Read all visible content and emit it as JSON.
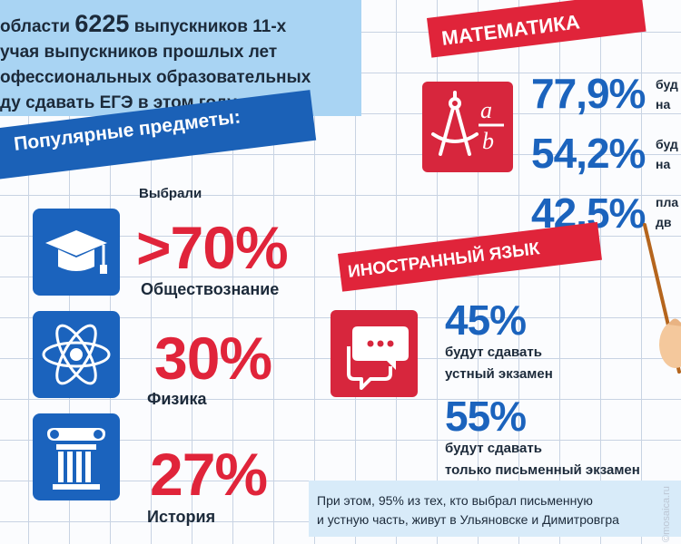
{
  "intro": {
    "line1a": "области ",
    "line1b": "6225",
    "line1c": " выпускников 11-х",
    "line2": "учая выпускников прошлых лет",
    "line3": "офессиональных образовательных",
    "line4": "ду сдавать ЕГЭ в этом году."
  },
  "popular": {
    "banner": "Популярные предметы:",
    "chose": "Выбрали",
    "items": [
      {
        "pct": ">70%",
        "subject": "Обществознание",
        "icon": "graduation-cap-icon"
      },
      {
        "pct": "30%",
        "subject": "Физика",
        "icon": "atom-icon"
      },
      {
        "pct": "27%",
        "subject": "История",
        "icon": "column-icon"
      }
    ]
  },
  "math": {
    "banner": "МАТЕМАТИКА",
    "icon": "compass-ab-icon",
    "stats": [
      {
        "pct": "77,9%",
        "line1": "буд",
        "line2": "на"
      },
      {
        "pct": "54,2%",
        "line1": "буд",
        "line2": "на"
      },
      {
        "pct": "42,5%",
        "line1": "пла",
        "line2": "дв"
      }
    ]
  },
  "language": {
    "banner": "ИНОСТРАННЫЙ ЯЗЫК",
    "icon": "speech-bubbles-icon",
    "stats": [
      {
        "pct": "45%",
        "line1": "будут сдавать",
        "line2": "устный экзамен"
      },
      {
        "pct": "55%",
        "line1": "будут сдавать",
        "line2": "только письменный экзамен"
      }
    ]
  },
  "note": {
    "line1": "При этом, 95% из тех, кто выбрал письменную",
    "line2": "и устную часть, живут в Ульяновске и Димитровгра"
  },
  "watermark": "©mosaica.ru",
  "colors": {
    "blue": "#1b63bd",
    "red": "#e0243a",
    "light_blue": "#a9d4f3"
  }
}
